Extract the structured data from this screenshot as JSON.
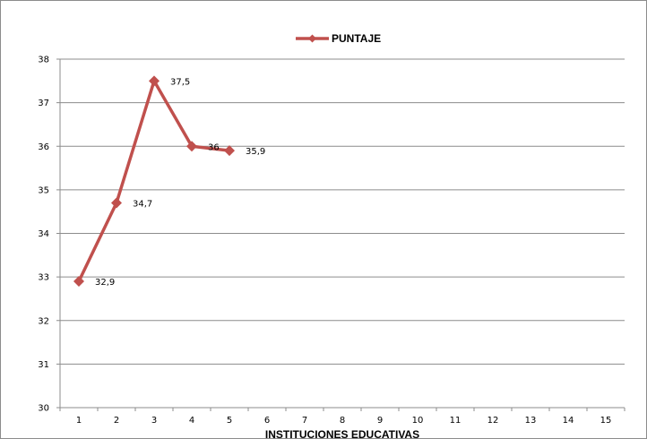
{
  "chart_data": {
    "type": "line",
    "xlabel": "INSTITUCIONES EDUCATIVAS",
    "ylabel": "",
    "categories": [
      "1",
      "2",
      "3",
      "4",
      "5",
      "6",
      "7",
      "8",
      "9",
      "10",
      "11",
      "12",
      "13",
      "14",
      "15"
    ],
    "ylim": [
      30,
      38
    ],
    "yticks": [
      "30",
      "31",
      "32",
      "33",
      "34",
      "35",
      "36",
      "37",
      "38"
    ],
    "grid": true,
    "legend": "top",
    "series": [
      {
        "name": "PUNTAJE",
        "color": "#c0504d",
        "marker": "diamond",
        "x": [
          1,
          2,
          3,
          4,
          5
        ],
        "values": [
          32.9,
          34.7,
          37.5,
          36,
          35.9
        ],
        "labels": [
          "32,9",
          "34,7",
          "37,5",
          "36",
          "35,9"
        ]
      }
    ]
  }
}
